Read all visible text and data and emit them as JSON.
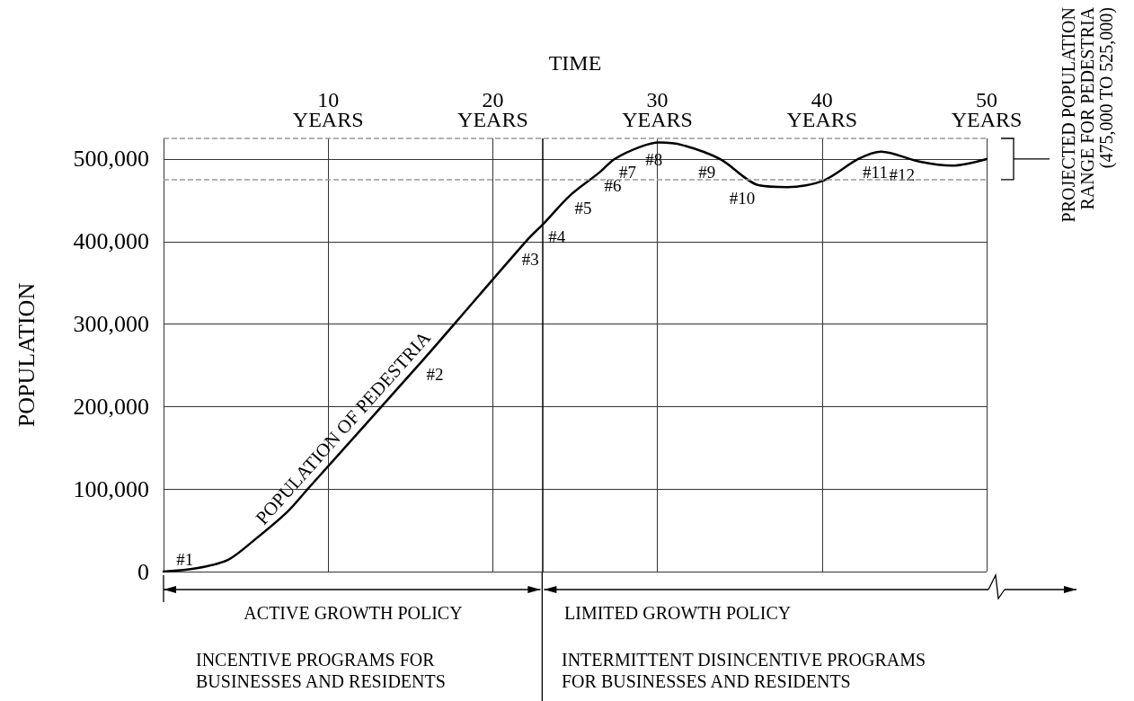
{
  "chart_data": {
    "type": "line",
    "xlabel": "TIME",
    "ylabel": "POPULATION",
    "xlim": [
      0,
      50
    ],
    "xticks": [
      {
        "value": 10,
        "label": "10\nYEARS"
      },
      {
        "value": 20,
        "label": "20\nYEARS"
      },
      {
        "value": 30,
        "label": "30\nYEARS"
      },
      {
        "value": 40,
        "label": "40\nYEARS"
      },
      {
        "value": 50,
        "label": "50\nYEARS"
      }
    ],
    "ylim": [
      0,
      525000
    ],
    "yticks": [
      {
        "value": 0,
        "label": "0"
      },
      {
        "value": 100000,
        "label": "100,000"
      },
      {
        "value": 200000,
        "label": "200,000"
      },
      {
        "value": 300000,
        "label": "300,000"
      },
      {
        "value": 400000,
        "label": "400,000"
      },
      {
        "value": 500000,
        "label": "500,000"
      }
    ],
    "x": [
      0,
      2,
      3.9,
      5.5,
      7.5,
      8.8,
      15.7,
      22.1,
      23.1,
      24.7,
      26.5,
      27.4,
      29,
      30.1,
      31.5,
      33.8,
      36.2,
      37.9,
      40.1,
      42.2,
      43.6,
      45.9,
      47.9,
      50
    ],
    "series": [
      {
        "name": "POPULATION OF PEDESTRIA",
        "color": "#000000",
        "values": [
          0,
          4000,
          14000,
          38000,
          72000,
          101000,
          255000,
          402000,
          422000,
          456000,
          484000,
          500000,
          515000,
          520000,
          517000,
          500000,
          468000,
          466000,
          474000,
          500000,
          509000,
          497000,
          492000,
          500000
        ]
      }
    ],
    "ref_lines": [
      {
        "axis": "y",
        "value": 525000,
        "label": null,
        "color": "#999999",
        "line_style": "dashed"
      },
      {
        "axis": "y",
        "value": 475000,
        "label": null,
        "color": "#999999",
        "line_style": "dashed"
      },
      {
        "axis": "x",
        "value": 23,
        "label": null,
        "color": "#000000",
        "line_style": "solid"
      }
    ],
    "annotations": [
      "ACTIVE GROWTH POLICY",
      "LIMITED GROWTH POLICY",
      "INCENTIVE PROGRAMS FOR\nBUSINESSES AND RESIDENTS",
      "INTERMITTENT DISINCENTIVE PROGRAMS\nFOR BUSINESSES AND RESIDENTS",
      "PROJECTED POPULATION\nRANGE FOR PEDESTRIA\n(475,000 TO 525,000)",
      {
        "text": "#1",
        "x": 0.5,
        "y": 0
      },
      {
        "text": "#2",
        "x": 15.7,
        "y": 255000
      },
      {
        "text": "#3",
        "x": 22.1,
        "y": 402000
      },
      {
        "text": "#4",
        "x": 23.1,
        "y": 422000
      },
      {
        "text": "#5",
        "x": 24.7,
        "y": 456000
      },
      {
        "text": "#6",
        "x": 26.5,
        "y": 484000
      },
      {
        "text": "#7",
        "x": 27.4,
        "y": 500000
      },
      {
        "text": "#8",
        "x": 29,
        "y": 515000
      },
      {
        "text": "#9",
        "x": 33.8,
        "y": 500000
      },
      {
        "text": "#10",
        "x": 36.2,
        "y": 468000
      },
      {
        "text": "#11",
        "x": 42.2,
        "y": 500000
      },
      {
        "text": "#12",
        "x": 45.9,
        "y": 497000
      }
    ],
    "grid": true,
    "legend": false,
    "marker": "none",
    "line_style": "solid"
  }
}
